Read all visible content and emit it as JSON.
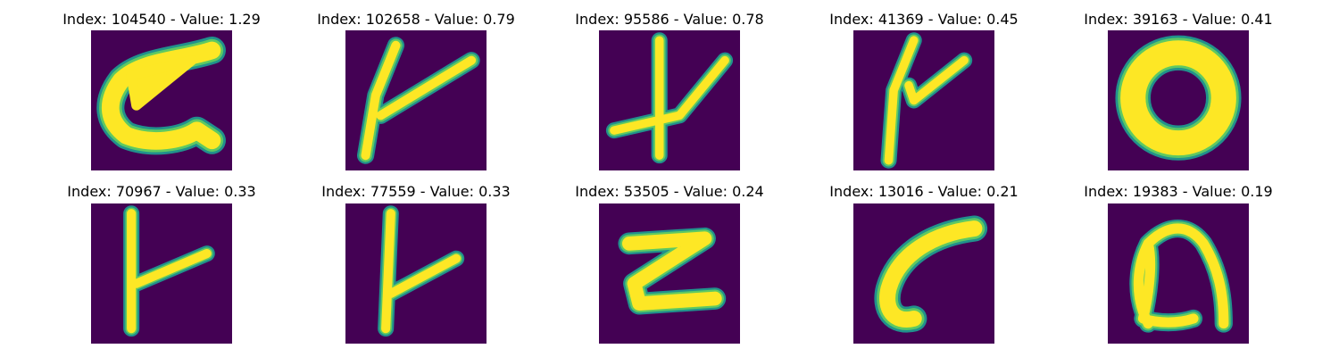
{
  "colors": {
    "background": "#440154",
    "stroke_core": "#fde725",
    "stroke_mid": "#5ec962",
    "stroke_edge": "#21918c"
  },
  "panels": [
    {
      "title": "Index: 104540 - Value: 1.29",
      "glyph": "letter-c-like"
    },
    {
      "title": "Index: 102658 - Value: 0.79",
      "glyph": "letter-y-like"
    },
    {
      "title": "Index: 95586 - Value: 0.78",
      "glyph": "cross-like"
    },
    {
      "title": "Index: 41369 - Value: 0.45",
      "glyph": "letter-y-like"
    },
    {
      "title": "Index: 39163 - Value: 0.41",
      "glyph": "letter-o"
    },
    {
      "title": "Index: 70967 - Value: 0.33",
      "glyph": "letter-k-like"
    },
    {
      "title": "Index: 77559 - Value: 0.33",
      "glyph": "letter-k-like"
    },
    {
      "title": "Index: 53505 - Value: 0.24",
      "glyph": "letter-z-like"
    },
    {
      "title": "Index: 13016 - Value: 0.21",
      "glyph": "letter-c"
    },
    {
      "title": "Index: 19383 - Value: 0.19",
      "glyph": "letter-n-like"
    }
  ]
}
